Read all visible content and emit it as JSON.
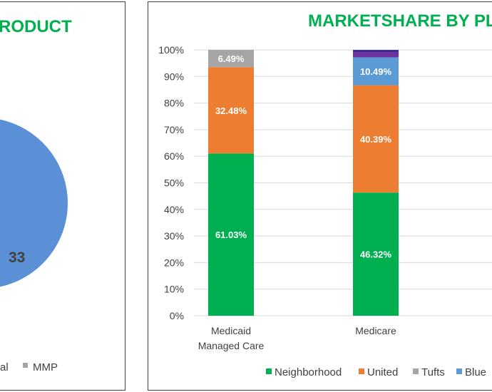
{
  "colors": {
    "title": "#00b050",
    "neighborhood": "#00b050",
    "united": "#ed7d31",
    "tufts": "#a5a5a5",
    "blue": "#5b9bd5",
    "other1": "#7030a0",
    "other2": "#3d2c8d",
    "pie": "#5b8fd6"
  },
  "left_chart": {
    "title_visible": "RODUCT",
    "pie_label": "33",
    "legend": [
      {
        "text": "al",
        "swatch": false
      },
      {
        "text": "MMP",
        "swatch": true,
        "color": "#a5a5a5"
      }
    ]
  },
  "chart_data": {
    "type": "bar",
    "stacked": true,
    "title": "MARKETSHARE BY PLA",
    "categories": [
      [
        "Medicaid",
        "Managed Care"
      ],
      [
        "Medicare"
      ]
    ],
    "ylim": [
      0,
      100
    ],
    "yticks": [
      "0%",
      "10%",
      "20%",
      "30%",
      "40%",
      "50%",
      "60%",
      "70%",
      "80%",
      "90%",
      "100%"
    ],
    "grid": true,
    "legend_position": "bottom",
    "legend": [
      "Neighborhood",
      "United",
      "Tufts",
      "Blue"
    ],
    "series": [
      {
        "name": "Neighborhood",
        "color": "#00b050",
        "values": [
          61.03,
          46.32
        ],
        "labels": [
          "61.03%",
          "46.32%"
        ]
      },
      {
        "name": "United",
        "color": "#ed7d31",
        "values": [
          32.48,
          40.39
        ],
        "labels": [
          "32.48%",
          "40.39%"
        ]
      },
      {
        "name": "Tufts",
        "color": "#a5a5a5",
        "values": [
          6.49,
          0
        ],
        "labels": [
          "6.49%",
          ""
        ]
      },
      {
        "name": "Blue",
        "color": "#5b9bd5",
        "values": [
          0,
          10.49
        ],
        "labels": [
          "",
          "10.49%"
        ]
      },
      {
        "color": "#7030a0",
        "values": [
          0,
          1.8
        ],
        "labels": [
          "",
          ""
        ]
      },
      {
        "color": "#3d2c8d",
        "values": [
          0,
          1.0
        ],
        "labels": [
          "",
          ""
        ]
      }
    ]
  }
}
